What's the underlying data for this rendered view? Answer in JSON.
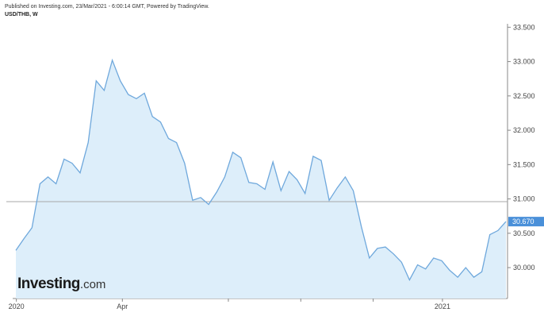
{
  "header": {
    "published": "Published on Investing.com, 23/Mar/2021 - 6:00:14 GMT, Powered by TradingView.",
    "symbol": "USD/THB, W"
  },
  "logo": {
    "brand": "Investing",
    "domain": ".com"
  },
  "current_price_label": "30.670",
  "chart_data": {
    "type": "area",
    "ylim": [
      29.55,
      33.55
    ],
    "xlim": [
      0,
      47
    ],
    "y_ticks": [
      "30.000",
      "30.500",
      "31.000",
      "31.500",
      "32.000",
      "32.500",
      "33.000",
      "33.500"
    ],
    "x_ticks": [
      {
        "label": "2020",
        "week": 0.2
      },
      {
        "label": "Apr",
        "week": 10.3
      },
      {
        "label": "",
        "week": 20.4
      },
      {
        "label": "",
        "week": 27.3
      },
      {
        "label": "",
        "week": 34.2
      },
      {
        "label": "2021",
        "week": 40.8
      }
    ],
    "reference_line": 30.96,
    "colors": {
      "line": "#6fa8dc",
      "fill": "#ddeefa",
      "price_tag": "#4a90d9"
    },
    "series": [
      {
        "values": [
          30.25,
          30.42,
          30.58,
          31.22,
          31.32,
          31.22,
          31.58,
          31.52,
          31.38,
          31.82,
          32.72,
          32.58,
          33.02,
          32.72,
          32.52,
          32.46,
          32.54,
          32.2,
          32.12,
          31.88,
          31.82,
          31.52,
          30.98,
          31.02,
          30.92,
          31.1,
          31.32,
          31.68,
          31.6,
          31.24,
          31.22,
          31.14,
          31.54,
          31.12,
          31.4,
          31.28,
          31.08,
          31.62,
          31.56,
          30.98,
          31.16,
          31.32,
          31.12,
          30.6,
          30.14,
          30.28,
          30.3,
          30.2,
          30.08,
          29.82,
          30.04,
          29.98,
          30.14,
          30.1,
          29.96,
          29.86,
          30.0,
          29.86,
          29.94,
          30.48,
          30.54,
          30.67
        ]
      }
    ]
  }
}
